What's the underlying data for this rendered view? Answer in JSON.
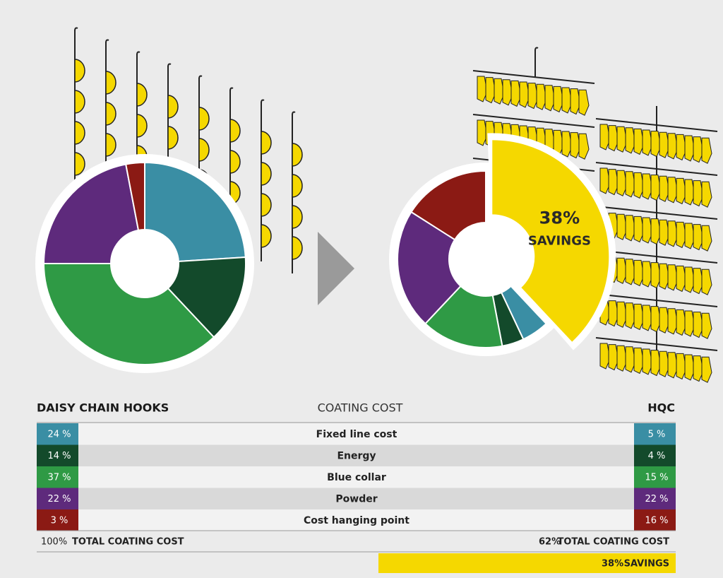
{
  "chart_data": [
    {
      "type": "donut",
      "title": "DAISY CHAIN HOOKS",
      "categories": [
        "Fixed line cost",
        "Energy",
        "Blue collar",
        "Powder",
        "Cost hanging point"
      ],
      "values": [
        24,
        14,
        37,
        22,
        3
      ],
      "value_labels": [
        "24 %",
        "14 %",
        "37 %",
        "22 %",
        "3 %"
      ],
      "colors": [
        "#3a8ea4",
        "#134a2b",
        "#2f9a45",
        "#5e2a7c",
        "#8b1a14"
      ],
      "explode": [
        false,
        false,
        false,
        false,
        false
      ],
      "total_label": "100%",
      "total_text": "TOTAL COATING COST"
    },
    {
      "type": "donut",
      "title": "HQC",
      "categories": [
        "Fixed line cost",
        "Energy",
        "Blue collar",
        "Powder",
        "Cost hanging point",
        "SAVINGS"
      ],
      "values": [
        5,
        4,
        15,
        22,
        16,
        38
      ],
      "value_labels": [
        "5 %",
        "4 %",
        "15 %",
        "22 %",
        "16 %",
        "38%"
      ],
      "colors": [
        "#3a8ea4",
        "#134a2b",
        "#2f9a45",
        "#5e2a7c",
        "#8b1a14",
        "#f5d800"
      ],
      "explode": [
        false,
        false,
        false,
        false,
        false,
        true
      ],
      "total_label": "62%",
      "total_text": "TOTAL COATING COST"
    }
  ],
  "table": {
    "title": "COATING COST"
  }
}
